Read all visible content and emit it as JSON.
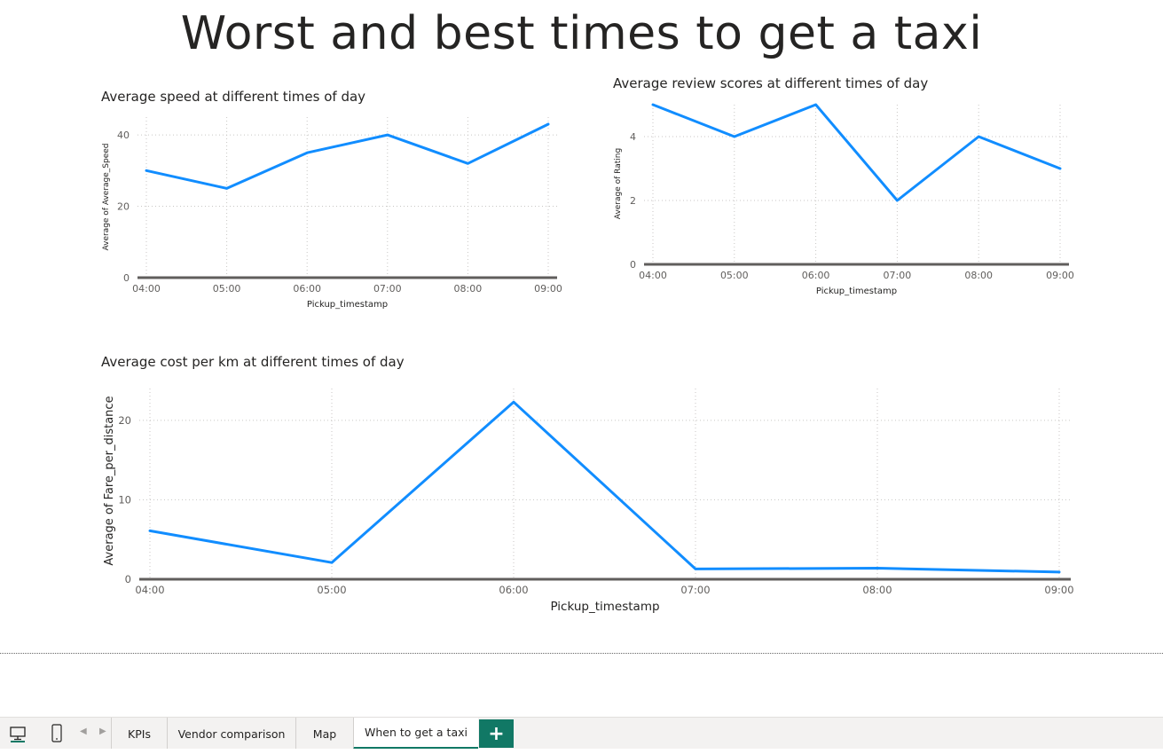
{
  "page": {
    "title": "Worst and best times to get a taxi"
  },
  "colors": {
    "line": "#118DFF",
    "accent": "#117865",
    "axis": "#605E5C",
    "grid": "#C8C6C4"
  },
  "tabs": {
    "items": [
      {
        "label": "KPIs",
        "active": false
      },
      {
        "label": "Vendor comparison",
        "active": false
      },
      {
        "label": "Map",
        "active": false
      },
      {
        "label": "When to get a taxi",
        "active": true
      }
    ],
    "add_label": "+",
    "desktop_view_icon": "monitor-icon",
    "mobile_view_icon": "phone-icon",
    "prev_icon": "chevron-left-icon",
    "next_icon": "chevron-right-icon"
  },
  "chart_data": [
    {
      "type": "line",
      "title": "Average speed at different times of day",
      "xlabel": "Pickup_timestamp",
      "ylabel": "Average of Average_Speed",
      "categories": [
        "04:00",
        "05:00",
        "06:00",
        "07:00",
        "08:00",
        "09:00"
      ],
      "values": [
        30,
        25,
        35,
        40,
        32,
        43
      ],
      "yticks": [
        0,
        20,
        40
      ],
      "ylim": [
        0,
        45
      ],
      "grid": true
    },
    {
      "type": "line",
      "title": "Average review scores at different times of day",
      "xlabel": "Pickup_timestamp",
      "ylabel": "Average of Rating",
      "categories": [
        "04:00",
        "05:00",
        "06:00",
        "07:00",
        "08:00",
        "09:00"
      ],
      "values": [
        5,
        4,
        5,
        2,
        4,
        3
      ],
      "yticks": [
        0,
        2,
        4
      ],
      "ylim": [
        0,
        5
      ],
      "grid": true
    },
    {
      "type": "line",
      "title": "Average cost per km at different times of day",
      "xlabel": "Pickup_timestamp",
      "ylabel": "Average of Fare_per_distance",
      "categories": [
        "04:00",
        "05:00",
        "06:00",
        "07:00",
        "08:00",
        "09:00"
      ],
      "values": [
        6.1,
        2.1,
        22.3,
        1.3,
        1.4,
        0.9
      ],
      "yticks": [
        0,
        10,
        20
      ],
      "ylim": [
        0,
        24
      ],
      "grid": true
    }
  ]
}
